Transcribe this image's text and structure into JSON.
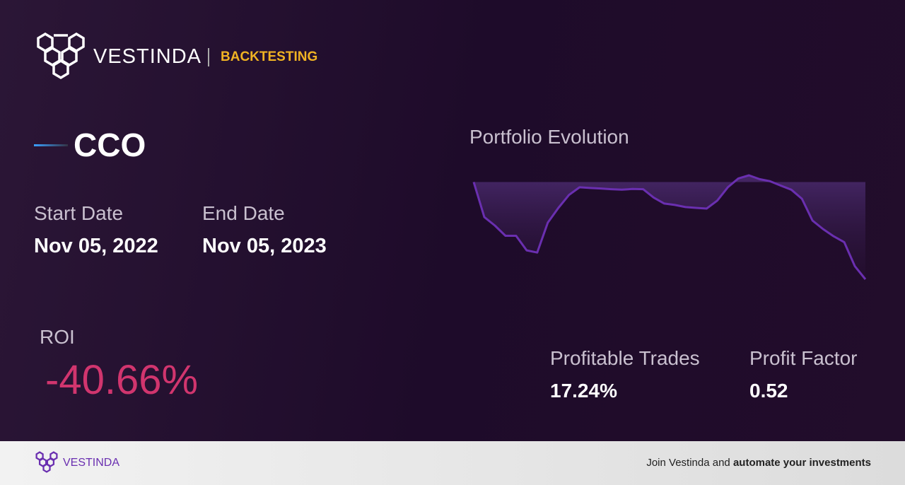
{
  "header": {
    "brand": "VESTINDA",
    "section": "BACKTESTING"
  },
  "ticker": "CCO",
  "dates": {
    "start_label": "Start Date",
    "start_value": "Nov 05, 2022",
    "end_label": "End Date",
    "end_value": "Nov 05, 2023"
  },
  "roi": {
    "label": "ROI",
    "value": "-40.66%"
  },
  "stats": [
    {
      "label": "Profitable Trades",
      "value": "17.24%"
    },
    {
      "label": "Profit Factor",
      "value": "0.52"
    }
  ],
  "chart_data": {
    "type": "line",
    "title": "Portfolio Evolution",
    "color": "#6a2fb0",
    "values": [
      100,
      85.3,
      81.8,
      77.5,
      77.5,
      71.4,
      70.5,
      83,
      89.2,
      94.6,
      97.8,
      97.5,
      97.3,
      97.0,
      96.8,
      97.1,
      97.0,
      93.5,
      91.0,
      90.4,
      89.5,
      89.2,
      88.9,
      92.2,
      97.8,
      101.5,
      102.8,
      101.2,
      100.3,
      98.5,
      96.8,
      93,
      83.9,
      80.3,
      77.3,
      74.8,
      64.8,
      59.3
    ]
  },
  "footer": {
    "brand": "VESTINDA",
    "cta_plain": "Join Vestinda and",
    "cta_bold": "automate your investments"
  }
}
